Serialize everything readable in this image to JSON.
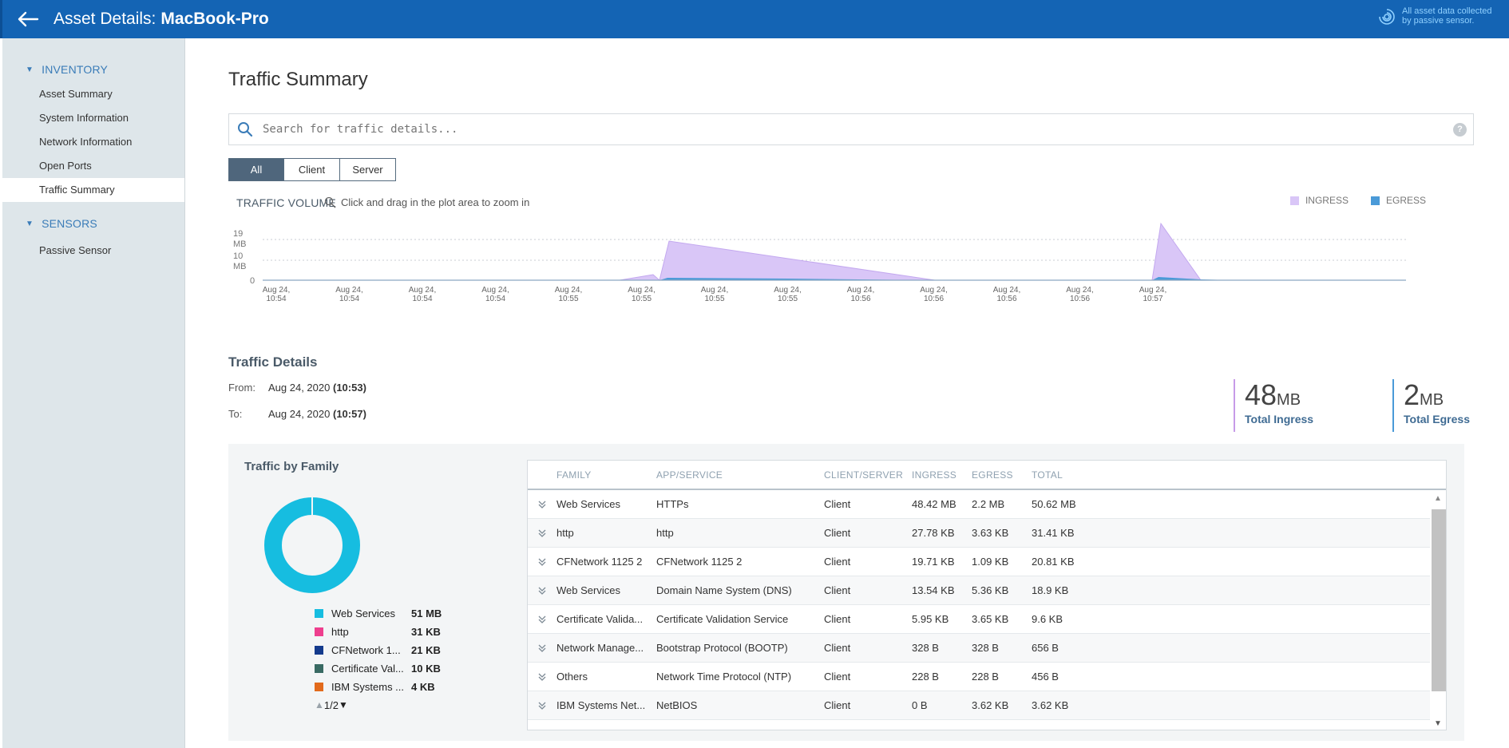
{
  "header": {
    "title_prefix": "Asset Details:",
    "asset_name": "MacBook-Pro",
    "sensor_note": "All asset data collected by passive sensor."
  },
  "sidebar": {
    "sections": [
      {
        "label": "INVENTORY",
        "items": [
          "Asset Summary",
          "System Information",
          "Network Information",
          "Open Ports",
          "Traffic Summary"
        ]
      },
      {
        "label": "SENSORS",
        "items": [
          "Passive Sensor"
        ]
      }
    ],
    "active_item": "Traffic Summary"
  },
  "page": {
    "title": "Traffic Summary"
  },
  "search": {
    "placeholder": "Search for traffic details..."
  },
  "filters": {
    "options": [
      "All",
      "Client",
      "Server"
    ],
    "selected": "All"
  },
  "traffic_volume": {
    "label": "TRAFFIC VOLUME",
    "hint": "Click and drag in the plot area to zoom in",
    "legend": [
      {
        "name": "INGRESS",
        "color": "#d9c6f7"
      },
      {
        "name": "EGRESS",
        "color": "#4a9ad8"
      }
    ],
    "y_labels": [
      "19 MB",
      "10 MB",
      "0"
    ],
    "x_labels": [
      [
        "Aug 24,",
        "10:54"
      ],
      [
        "Aug 24,",
        "10:54"
      ],
      [
        "Aug 24,",
        "10:54"
      ],
      [
        "Aug 24,",
        "10:54"
      ],
      [
        "Aug 24,",
        "10:55"
      ],
      [
        "Aug 24,",
        "10:55"
      ],
      [
        "Aug 24,",
        "10:55"
      ],
      [
        "Aug 24,",
        "10:55"
      ],
      [
        "Aug 24,",
        "10:56"
      ],
      [
        "Aug 24,",
        "10:56"
      ],
      [
        "Aug 24,",
        "10:56"
      ],
      [
        "Aug 24,",
        "10:56"
      ],
      [
        "Aug 24,",
        "10:57"
      ]
    ]
  },
  "traffic_details": {
    "title": "Traffic Details",
    "from_label": "From:",
    "from_date": "Aug 24, 2020",
    "from_time": "(10:53)",
    "to_label": "To:",
    "to_date": "Aug 24, 2020",
    "to_time": "(10:57)",
    "total_ingress": {
      "value": "48",
      "unit": "MB",
      "label": "Total Ingress"
    },
    "total_egress": {
      "value": "2",
      "unit": "MB",
      "label": "Total Egress"
    }
  },
  "traffic_by_family": {
    "title": "Traffic by Family",
    "donut_color": "#16bde0",
    "legend": [
      {
        "name": "Web Services",
        "value": "51 MB",
        "color": "#16bde0"
      },
      {
        "name": "http",
        "value": "31 KB",
        "color": "#ee3f8e"
      },
      {
        "name": "CFNetwork 1...",
        "value": "21 KB",
        "color": "#133a8c"
      },
      {
        "name": "Certificate Val...",
        "value": "10 KB",
        "color": "#386a63"
      },
      {
        "name": "IBM Systems ...",
        "value": "4 KB",
        "color": "#e26a1c"
      }
    ],
    "pager": "1/2"
  },
  "table": {
    "headers": [
      "FAMILY",
      "APP/SERVICE",
      "CLIENT/SERVER",
      "INGRESS",
      "EGRESS",
      "TOTAL"
    ],
    "rows": [
      [
        "Web Services",
        "HTTPs",
        "Client",
        "48.42 MB",
        "2.2 MB",
        "50.62 MB"
      ],
      [
        "http",
        "http",
        "Client",
        "27.78 KB",
        "3.63 KB",
        "31.41 KB"
      ],
      [
        "CFNetwork 1125 2",
        "CFNetwork 1125 2",
        "Client",
        "19.71 KB",
        "1.09 KB",
        "20.81 KB"
      ],
      [
        "Web Services",
        "Domain Name System (DNS)",
        "Client",
        "13.54 KB",
        "5.36 KB",
        "18.9 KB"
      ],
      [
        "Certificate Valida...",
        "Certificate Validation Service",
        "Client",
        "5.95 KB",
        "3.65 KB",
        "9.6 KB"
      ],
      [
        "Network Manage...",
        "Bootstrap Protocol (BOOTP)",
        "Client",
        "328 B",
        "328 B",
        "656 B"
      ],
      [
        "Others",
        "Network Time Protocol (NTP)",
        "Client",
        "228 B",
        "228 B",
        "456 B"
      ],
      [
        "IBM Systems Net...",
        "NetBIOS",
        "Client",
        "0 B",
        "3.62 KB",
        "3.62 KB"
      ]
    ]
  }
}
